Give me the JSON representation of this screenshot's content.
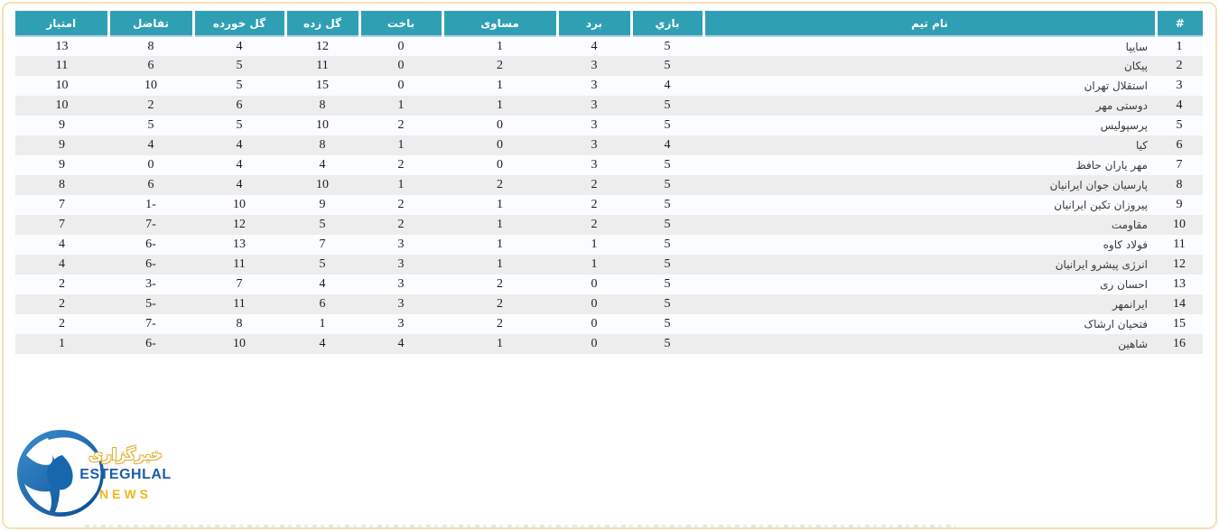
{
  "card": {
    "background": "#ffffff",
    "border_color": "#f6e0b2"
  },
  "table": {
    "direction": "rtl",
    "header_bg": "#2fa0b4",
    "header_text_color": "#ffffff",
    "divider_color": "#b3d0e0",
    "row_odd_bg": "#fafcff",
    "row_even_bg": "#ededed",
    "columns": [
      {
        "key": "rank",
        "label": "#"
      },
      {
        "key": "team",
        "label": "نام تیم"
      },
      {
        "key": "played",
        "label": "بازي"
      },
      {
        "key": "wins",
        "label": "برد"
      },
      {
        "key": "draws",
        "label": "مساوی"
      },
      {
        "key": "losses",
        "label": "باخت"
      },
      {
        "key": "goals_for",
        "label": "گل زده"
      },
      {
        "key": "goals_against",
        "label": "گل خورده"
      },
      {
        "key": "diff",
        "label": "تفاضل"
      },
      {
        "key": "points",
        "label": "امتیاز"
      }
    ],
    "rows": [
      {
        "rank": "1",
        "team": "سایپا",
        "played": "5",
        "wins": "4",
        "draws": "1",
        "losses": "0",
        "goals_for": "12",
        "goals_against": "4",
        "diff": "8",
        "points": "13"
      },
      {
        "rank": "2",
        "team": "پیکان",
        "played": "5",
        "wins": "3",
        "draws": "2",
        "losses": "0",
        "goals_for": "11",
        "goals_against": "5",
        "diff": "6",
        "points": "11"
      },
      {
        "rank": "3",
        "team": "استقلال تهران",
        "played": "4",
        "wins": "3",
        "draws": "1",
        "losses": "0",
        "goals_for": "15",
        "goals_against": "5",
        "diff": "10",
        "points": "10"
      },
      {
        "rank": "4",
        "team": "دوستی مهر",
        "played": "5",
        "wins": "3",
        "draws": "1",
        "losses": "1",
        "goals_for": "8",
        "goals_against": "6",
        "diff": "2",
        "points": "10"
      },
      {
        "rank": "5",
        "team": "پرسپولیس",
        "played": "5",
        "wins": "3",
        "draws": "0",
        "losses": "2",
        "goals_for": "10",
        "goals_against": "5",
        "diff": "5",
        "points": "9"
      },
      {
        "rank": "6",
        "team": "کیا",
        "played": "4",
        "wins": "3",
        "draws": "0",
        "losses": "1",
        "goals_for": "8",
        "goals_against": "4",
        "diff": "4",
        "points": "9"
      },
      {
        "rank": "7",
        "team": "مهر یاران حافظ",
        "played": "5",
        "wins": "3",
        "draws": "0",
        "losses": "2",
        "goals_for": "4",
        "goals_against": "4",
        "diff": "0",
        "points": "9"
      },
      {
        "rank": "8",
        "team": "پارسیان جوان ایرانیان",
        "played": "5",
        "wins": "2",
        "draws": "2",
        "losses": "1",
        "goals_for": "10",
        "goals_against": "4",
        "diff": "6",
        "points": "8"
      },
      {
        "rank": "9",
        "team": "پیروزان تکین ایرانیان",
        "played": "5",
        "wins": "2",
        "draws": "1",
        "losses": "2",
        "goals_for": "9",
        "goals_against": "10",
        "diff": "1-",
        "points": "7"
      },
      {
        "rank": "10",
        "team": "مقاومت",
        "played": "5",
        "wins": "2",
        "draws": "1",
        "losses": "2",
        "goals_for": "5",
        "goals_against": "12",
        "diff": "7-",
        "points": "7"
      },
      {
        "rank": "11",
        "team": "فولاد کاوه",
        "played": "5",
        "wins": "1",
        "draws": "1",
        "losses": "3",
        "goals_for": "7",
        "goals_against": "13",
        "diff": "6-",
        "points": "4"
      },
      {
        "rank": "12",
        "team": "انرژی پیشرو ایرانیان",
        "played": "5",
        "wins": "1",
        "draws": "1",
        "losses": "3",
        "goals_for": "5",
        "goals_against": "11",
        "diff": "6-",
        "points": "4"
      },
      {
        "rank": "13",
        "team": "احسان ری",
        "played": "5",
        "wins": "0",
        "draws": "2",
        "losses": "3",
        "goals_for": "4",
        "goals_against": "7",
        "diff": "3-",
        "points": "2"
      },
      {
        "rank": "14",
        "team": "ایرانمهر",
        "played": "5",
        "wins": "0",
        "draws": "2",
        "losses": "3",
        "goals_for": "6",
        "goals_against": "11",
        "diff": "5-",
        "points": "2"
      },
      {
        "rank": "15",
        "team": "فتحیان ارشاک",
        "played": "5",
        "wins": "0",
        "draws": "2",
        "losses": "3",
        "goals_for": "1",
        "goals_against": "8",
        "diff": "7-",
        "points": "2"
      },
      {
        "rank": "16",
        "team": "شاهین",
        "played": "5",
        "wins": "0",
        "draws": "1",
        "losses": "4",
        "goals_for": "4",
        "goals_against": "10",
        "diff": "6-",
        "points": "1"
      }
    ]
  },
  "logo": {
    "line_fa": "خبرگزاری",
    "line_en": "ESTEGHLAL",
    "line_news": "NEWS",
    "ball_blue_dark": "#0a4a90",
    "ball_blue_light": "#3a8fd0",
    "text_blue": "#1a5fa8",
    "text_gold": "#f2b61e"
  }
}
